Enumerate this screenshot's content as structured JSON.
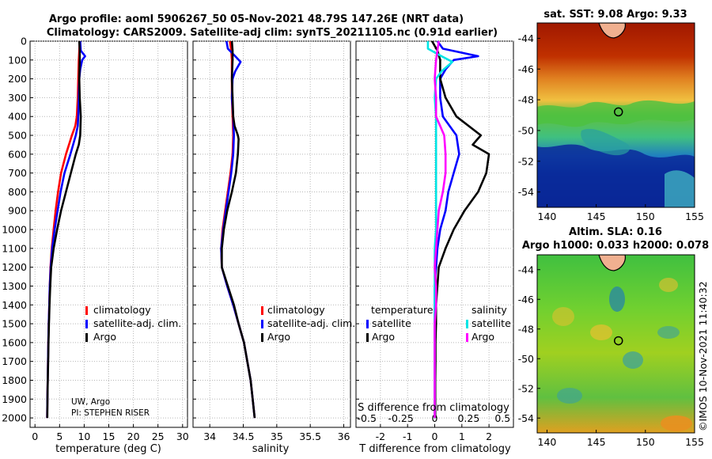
{
  "title_line1": "Argo profile: aoml 5906267_50 05-Nov-2021 48.79S 147.26E (NRT data)",
  "title_line2": "Climatology: CARS2009. Satellite-adj clim: synTS_20211105.nc (0.91d earlier)",
  "watermark": "©IMOS 10-Nov-2021 11:40:32",
  "credit1": "UW, Argo",
  "credit2": "PI: STEPHEN RISER",
  "colors": {
    "climatology": "#ff0000",
    "satellite": "#0000ff",
    "argo": "#000000",
    "sal_satellite": "#00e5e5",
    "sal_argo": "#ff00ff"
  },
  "chart_data": [
    {
      "type": "line",
      "xlabel": "temperature (deg C)",
      "ylabel": "depth",
      "xlim": [
        -1,
        31
      ],
      "ylim": [
        0,
        2050
      ],
      "x_ticks": [
        0,
        5,
        10,
        15,
        20,
        25,
        30
      ],
      "y_ticks": [
        0,
        100,
        200,
        300,
        400,
        500,
        600,
        700,
        800,
        900,
        1000,
        1100,
        1200,
        1300,
        1400,
        1500,
        1600,
        1700,
        1800,
        1900,
        2000
      ],
      "legend": [
        "climatology",
        "satellite-adj. clim.",
        "Argo"
      ],
      "series": [
        {
          "name": "climatology",
          "color": "red",
          "depth": [
            0,
            50,
            100,
            200,
            300,
            400,
            450,
            500,
            600,
            700,
            800,
            900,
            1000,
            1100,
            1200,
            1300,
            1400,
            1500,
            1600,
            1700,
            1800,
            1900,
            2000
          ],
          "values": [
            9.1,
            9.0,
            8.9,
            8.8,
            8.7,
            8.5,
            8.2,
            7.5,
            6.3,
            5.3,
            4.7,
            4.2,
            3.8,
            3.4,
            3.15,
            3.0,
            2.9,
            2.8,
            2.72,
            2.65,
            2.58,
            2.52,
            2.48
          ]
        },
        {
          "name": "satellite-adj. clim.",
          "color": "blue",
          "depth": [
            0,
            50,
            80,
            100,
            150,
            200,
            300,
            400,
            450,
            500,
            600,
            700,
            800,
            900,
            1000,
            1100,
            1200,
            1300,
            1400,
            1500,
            1600,
            1700,
            1800,
            1900,
            2000
          ],
          "values": [
            9.2,
            9.3,
            10.2,
            9.6,
            9.2,
            9.0,
            8.9,
            8.8,
            8.7,
            8.3,
            7.2,
            6.0,
            5.2,
            4.6,
            4.0,
            3.5,
            3.2,
            3.0,
            2.9,
            2.8,
            2.72,
            2.65,
            2.58,
            2.52,
            2.48
          ]
        },
        {
          "name": "Argo",
          "color": "black",
          "depth": [
            0,
            50,
            100,
            200,
            300,
            400,
            500,
            550,
            600,
            700,
            800,
            900,
            1000,
            1100,
            1200,
            1300,
            1400,
            1500,
            1600,
            1700,
            1800,
            1900,
            2000
          ],
          "values": [
            9.0,
            9.1,
            9.1,
            9.0,
            9.1,
            9.3,
            9.2,
            8.9,
            8.3,
            7.3,
            6.3,
            5.3,
            4.5,
            3.8,
            3.3,
            3.1,
            2.95,
            2.85,
            2.75,
            2.68,
            2.6,
            2.54,
            2.5
          ]
        }
      ]
    },
    {
      "type": "line",
      "xlabel": "salinity",
      "ylabel": "depth",
      "xlim": [
        33.75,
        36.1
      ],
      "ylim": [
        0,
        2050
      ],
      "x_ticks": [
        34,
        34.5,
        35,
        35.5,
        36
      ],
      "x_tick_labels": [
        "34",
        "34.5",
        "35",
        "35.5",
        "36"
      ],
      "legend": [
        "climatology",
        "satellite-adj. clim.",
        "Argo"
      ],
      "series": [
        {
          "name": "climatology",
          "color": "red",
          "depth": [
            0,
            50,
            100,
            200,
            300,
            400,
            500,
            600,
            700,
            800,
            900,
            1000,
            1100,
            1200,
            1300,
            1400,
            1500,
            1600,
            1700,
            1800,
            1900,
            2000
          ],
          "values": [
            34.3,
            34.32,
            34.33,
            34.33,
            34.33,
            34.34,
            34.35,
            34.34,
            34.31,
            34.27,
            34.23,
            34.19,
            34.17,
            34.18,
            34.26,
            34.35,
            34.43,
            34.51,
            34.56,
            34.61,
            34.64,
            34.67
          ]
        },
        {
          "name": "satellite-adj. clim.",
          "color": "blue",
          "depth": [
            0,
            40,
            80,
            110,
            160,
            200,
            300,
            400,
            500,
            600,
            700,
            800,
            900,
            1000,
            1100,
            1200,
            1300,
            1400,
            1500,
            1600,
            1700,
            1800,
            1900,
            2000
          ],
          "values": [
            34.25,
            34.27,
            34.38,
            34.46,
            34.38,
            34.34,
            34.33,
            34.35,
            34.36,
            34.35,
            34.32,
            34.28,
            34.24,
            34.2,
            34.17,
            34.18,
            34.26,
            34.35,
            34.43,
            34.51,
            34.56,
            34.61,
            34.64,
            34.67
          ]
        },
        {
          "name": "Argo",
          "color": "black",
          "depth": [
            0,
            50,
            100,
            200,
            300,
            400,
            450,
            500,
            520,
            600,
            700,
            800,
            900,
            1000,
            1100,
            1200,
            1300,
            1400,
            1500,
            1600,
            1700,
            1800,
            1900,
            2000
          ],
          "values": [
            34.33,
            34.34,
            34.34,
            34.33,
            34.34,
            34.35,
            34.37,
            34.42,
            34.43,
            34.42,
            34.39,
            34.33,
            34.26,
            34.21,
            34.18,
            34.18,
            34.27,
            34.36,
            34.43,
            34.51,
            34.56,
            34.61,
            34.64,
            34.67
          ]
        }
      ]
    },
    {
      "type": "line",
      "xlabel": "T difference from climatology",
      "xlabel_top": "S difference from climatology",
      "ylim": [
        0,
        2050
      ],
      "xlim": [
        -2.9,
        2.9
      ],
      "x_ticks": [
        -2,
        -1,
        0,
        1,
        2
      ],
      "x_ticks_top": [
        -0.5,
        -0.25,
        0,
        0.25,
        0.5
      ],
      "x_tick_labels_top": [
        "-0.5",
        "-0.25",
        "0",
        "0.25",
        "0.5"
      ],
      "legend_headers": [
        "temperature",
        "salinity"
      ],
      "legend": [
        "satellite",
        "Argo",
        "satellite",
        "Argo"
      ],
      "series": [
        {
          "name": "T satellite",
          "color": "blue",
          "depth": [
            0,
            40,
            80,
            100,
            150,
            200,
            300,
            400,
            500,
            600,
            700,
            800,
            900,
            1000,
            1100,
            1200,
            1300,
            1400,
            1500,
            1600,
            1700,
            1800,
            1900,
            2000
          ],
          "values": [
            0.1,
            0.3,
            1.6,
            0.7,
            0.4,
            0.2,
            0.2,
            0.3,
            0.8,
            0.9,
            0.7,
            0.5,
            0.4,
            0.2,
            0.1,
            0.05,
            0.0,
            0.0,
            0.0,
            0.0,
            0.0,
            0.0,
            0.0,
            0.0
          ]
        },
        {
          "name": "T Argo",
          "color": "black",
          "depth": [
            0,
            50,
            100,
            200,
            300,
            400,
            500,
            550,
            600,
            700,
            800,
            900,
            1000,
            1100,
            1200,
            1300,
            1400,
            1500,
            1600,
            1700,
            1800,
            1900,
            2000
          ],
          "values": [
            -0.1,
            0.1,
            0.2,
            0.2,
            0.4,
            0.8,
            1.7,
            1.4,
            2.0,
            1.9,
            1.6,
            1.1,
            0.7,
            0.4,
            0.15,
            0.1,
            0.05,
            0.05,
            0.03,
            0.03,
            0.02,
            0.02,
            0.02
          ]
        },
        {
          "name": "S satellite",
          "color": "cyan",
          "depth": [
            0,
            40,
            80,
            110,
            160,
            200,
            300,
            400,
            500,
            600,
            700,
            800,
            900,
            1000,
            1100,
            1200,
            1300,
            1400,
            1500,
            1600,
            1700,
            1800,
            1900,
            2000
          ],
          "values": [
            -0.05,
            -0.05,
            0.05,
            0.13,
            0.05,
            0.01,
            0.0,
            0.01,
            0.01,
            0.01,
            0.01,
            0.01,
            0.01,
            0.01,
            0.0,
            0.0,
            0.0,
            0.0,
            0.0,
            0.0,
            0.0,
            0.0,
            0.0,
            0.0
          ]
        },
        {
          "name": "S Argo",
          "color": "magenta",
          "depth": [
            0,
            50,
            100,
            200,
            300,
            400,
            500,
            600,
            700,
            800,
            900,
            1000,
            1100,
            1200,
            1300,
            1400,
            1500,
            1600,
            1700,
            1800,
            1900,
            2000
          ],
          "values": [
            0.03,
            0.02,
            0.01,
            0.0,
            0.01,
            0.01,
            0.07,
            0.08,
            0.08,
            0.06,
            0.03,
            0.02,
            0.01,
            0.0,
            0.01,
            0.01,
            0.0,
            0.0,
            0.0,
            0.0,
            0.0,
            0.0
          ]
        }
      ]
    },
    {
      "type": "heatmap",
      "title": "sat. SST: 9.08 Argo: 9.33",
      "x_ticks": [
        140,
        145,
        150,
        155
      ],
      "y_tick_labels": [
        "-44",
        "-46",
        "-48",
        "-50",
        "-52",
        "-54"
      ],
      "xlim": [
        139,
        155
      ],
      "ylim": [
        -55,
        -43
      ],
      "argo_position": [
        147.26,
        -48.79
      ]
    },
    {
      "type": "heatmap",
      "title_line1": "Altim. SLA: 0.16",
      "title_line2": "Argo h1000: 0.033 h2000: 0.078",
      "x_ticks": [
        140,
        145,
        150,
        155
      ],
      "y_tick_labels": [
        "-44",
        "-46",
        "-48",
        "-50",
        "-52",
        "-54"
      ],
      "xlim": [
        139,
        155
      ],
      "ylim": [
        -55,
        -43
      ],
      "argo_position": [
        147.26,
        -48.79
      ]
    }
  ]
}
